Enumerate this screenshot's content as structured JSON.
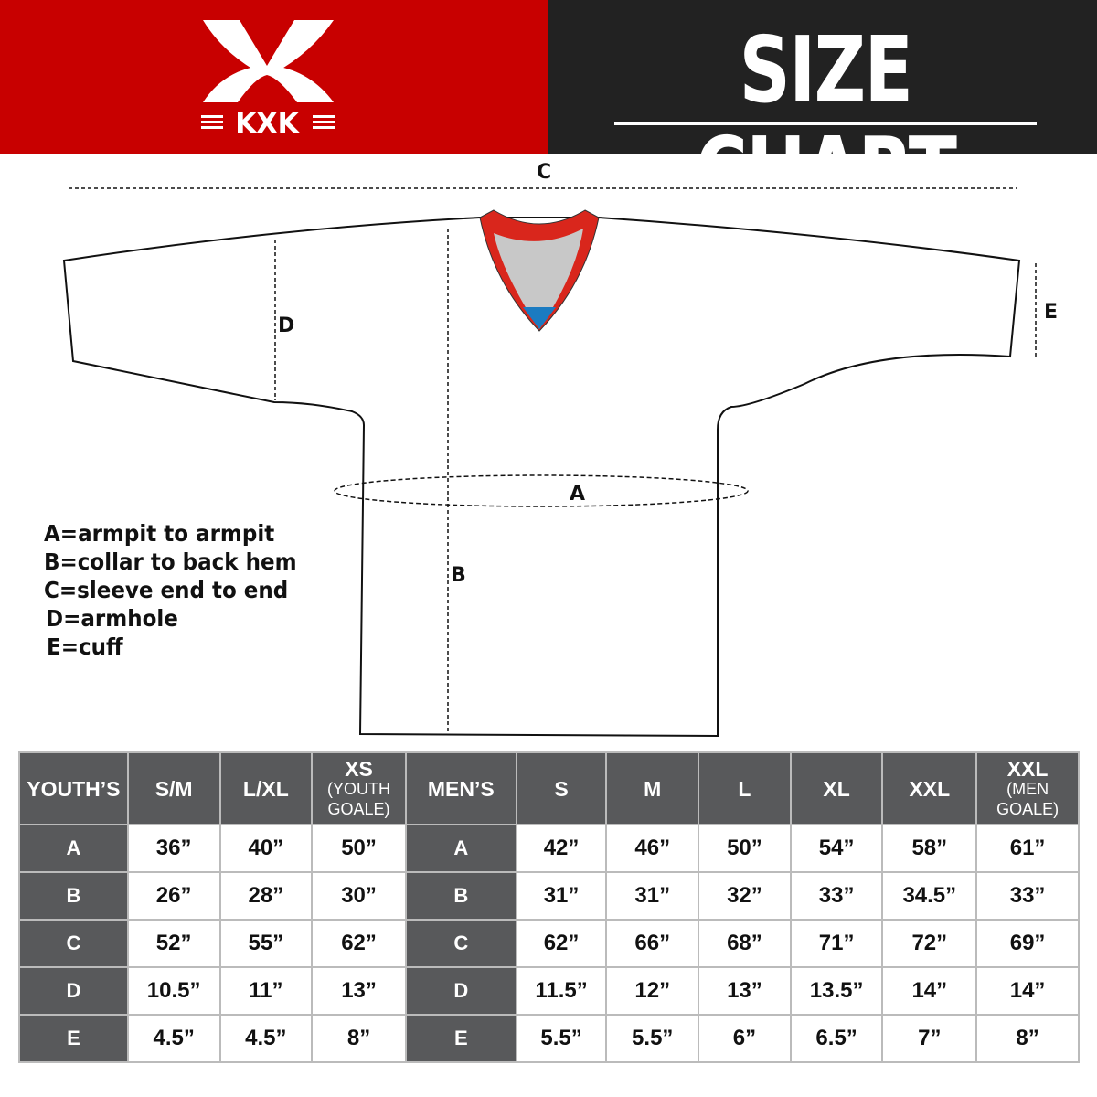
{
  "brand": {
    "logo_text": "KXK",
    "colors": {
      "red": "#c80000",
      "dark": "#222222",
      "table_header": "#58595b"
    }
  },
  "header": {
    "title": "SIZE CHART"
  },
  "diagram": {
    "labels": {
      "A": "A",
      "B": "B",
      "C": "C",
      "D": "D",
      "E": "E"
    }
  },
  "legend": [
    "A=armpit to armpit",
    "B=collar to back hem",
    "C=sleeve end to end",
    "D=armhole",
    "E=cuff"
  ],
  "table": {
    "youth_header": {
      "label": "YOUTH’S",
      "cols": [
        {
          "main": "S/M",
          "sub": ""
        },
        {
          "main": "L/XL",
          "sub": ""
        },
        {
          "main": "XS",
          "sub": "(YOUTH GOALE)"
        }
      ]
    },
    "men_header": {
      "label": "MEN’S",
      "cols": [
        {
          "main": "S",
          "sub": ""
        },
        {
          "main": "M",
          "sub": ""
        },
        {
          "main": "L",
          "sub": ""
        },
        {
          "main": "XL",
          "sub": ""
        },
        {
          "main": "XXL",
          "sub": ""
        },
        {
          "main": "XXL",
          "sub": "(MEN GOALE)"
        }
      ]
    },
    "rows": [
      {
        "key": "A",
        "youth": [
          "36”",
          "40”",
          "50”"
        ],
        "men": [
          "42”",
          "46”",
          "50”",
          "54”",
          "58”",
          "61”"
        ]
      },
      {
        "key": "B",
        "youth": [
          "26”",
          "28”",
          "30”"
        ],
        "men": [
          "31”",
          "31”",
          "32”",
          "33”",
          "34.5”",
          "33”"
        ]
      },
      {
        "key": "C",
        "youth": [
          "52”",
          "55”",
          "62”"
        ],
        "men": [
          "62”",
          "66”",
          "68”",
          "71”",
          "72”",
          "69”"
        ]
      },
      {
        "key": "D",
        "youth": [
          "10.5”",
          "11”",
          "13”"
        ],
        "men": [
          "11.5”",
          "12”",
          "13”",
          "13.5”",
          "14”",
          "14”"
        ]
      },
      {
        "key": "E",
        "youth": [
          "4.5”",
          "4.5”",
          "8”"
        ],
        "men": [
          "5.5”",
          "5.5”",
          "6”",
          "6.5”",
          "7”",
          "8”"
        ]
      }
    ]
  }
}
